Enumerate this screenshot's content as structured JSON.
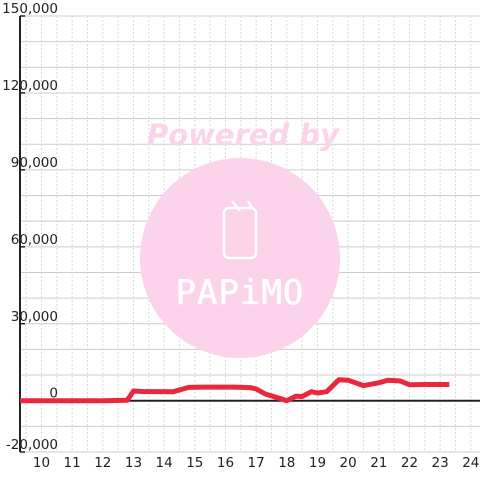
{
  "chart_data": {
    "type": "line",
    "title": "",
    "xlabel": "",
    "ylabel": "",
    "xlim": [
      9.3,
      24.3
    ],
    "ylim": [
      -20000,
      150000
    ],
    "x_ticks": [
      10,
      11,
      12,
      13,
      14,
      15,
      16,
      17,
      18,
      19,
      20,
      21,
      22,
      23,
      24
    ],
    "x_tick_labels": [
      "10",
      "11",
      "12",
      "13",
      "14",
      "15",
      "16",
      "17",
      "18",
      "19",
      "20",
      "21",
      "22",
      "23",
      "24"
    ],
    "y_ticks": [
      -20000,
      0,
      30000,
      60000,
      90000,
      120000,
      150000
    ],
    "y_tick_labels": [
      "-20,000",
      "0",
      "30,000",
      "60,000",
      "90,000",
      "120,000",
      "150,000"
    ],
    "grid": true,
    "series": [
      {
        "color": "#e8283c",
        "x": [
          9.3,
          12.0,
          12.8,
          13.0,
          13.3,
          14.3,
          14.8,
          15.3,
          16.3,
          16.8,
          17.0,
          17.3,
          17.8,
          18.0,
          18.3,
          18.5,
          18.8,
          19.0,
          19.3,
          19.7,
          20.0,
          20.5,
          21.0,
          21.3,
          21.7,
          22.0,
          22.5,
          23.3
        ],
        "y": [
          0,
          0,
          200,
          3800,
          3600,
          3500,
          5200,
          5300,
          5300,
          5100,
          4600,
          2600,
          800,
          0,
          1800,
          1600,
          3500,
          3000,
          3500,
          8200,
          8000,
          5900,
          7000,
          8000,
          7700,
          6200,
          6300,
          6300
        ]
      }
    ]
  },
  "watermark": {
    "top_text": "Powered by",
    "brand_text": "PAPiMO",
    "color": "#fbd3ea"
  },
  "colors": {
    "background": "#ffffff",
    "grid_major": "#cccccc",
    "grid_minor": "#d8d8d8",
    "axis": "#222222",
    "line": "#e8283c"
  }
}
